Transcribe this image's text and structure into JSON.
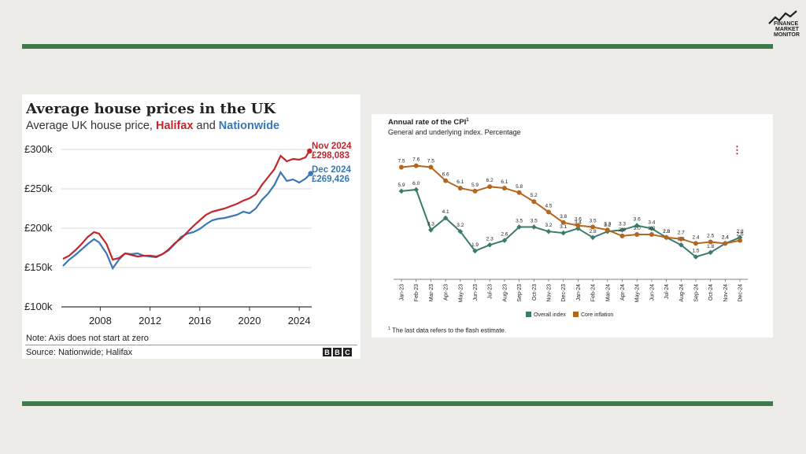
{
  "logo": {
    "line1": "FINANCE",
    "line2": "MARKET",
    "line3": "MONITOR"
  },
  "colors": {
    "rule": "#3f7a4d",
    "halifax": "#c0272d",
    "nationwide": "#3a78b5",
    "overall": "#3a7b6e",
    "core": "#b5661e"
  },
  "house_chart": {
    "title": "Average house prices in the UK",
    "subtitle_pre": "Average UK house price, ",
    "subtitle_halifax": "Halifax",
    "subtitle_mid": " and ",
    "subtitle_nationwide": "Nationwide",
    "note": "Note: Axis does not start at zero",
    "source": "Source: Nationwide; Halifax",
    "bbc": [
      "B",
      "B",
      "C"
    ],
    "label_halifax_date": "Nov 2024",
    "label_halifax_value": "£298,083",
    "label_nationwide_date": "Dec 2024",
    "label_nationwide_value": "£269,426"
  },
  "cpi_chart": {
    "title": "Annual rate of the CPI",
    "title_sup": "1",
    "subtitle": "General and underlying index. Percentage",
    "footnote_mark": "1",
    "footnote": "The last data refers to the flash estimate.",
    "menu_glyph": "⋮"
  },
  "chart_data": [
    {
      "type": "line",
      "title": "Average house prices in the UK",
      "subtitle": "Average UK house price, Halifax and Nationwide",
      "ylim": [
        100000,
        300000
      ],
      "yticks": [
        100000,
        150000,
        200000,
        250000,
        300000
      ],
      "ytick_labels": [
        "£100k",
        "£150k",
        "£200k",
        "£250k",
        "£300k"
      ],
      "xlim": [
        2005,
        2025
      ],
      "xticks": [
        2008,
        2012,
        2016,
        2020,
        2024
      ],
      "xtick_labels": [
        "2008",
        "2012",
        "2016",
        "2020",
        "2024"
      ],
      "grid": true,
      "series": [
        {
          "name": "Halifax",
          "color": "#c0272d",
          "x": [
            2005.0,
            2005.5,
            2006.0,
            2006.5,
            2007.0,
            2007.5,
            2007.9,
            2008.5,
            2009.0,
            2009.5,
            2010.0,
            2010.5,
            2011.0,
            2011.5,
            2012.0,
            2012.5,
            2013.0,
            2013.5,
            2014.0,
            2014.5,
            2015.0,
            2015.5,
            2016.0,
            2016.5,
            2017.0,
            2017.5,
            2018.0,
            2018.5,
            2019.0,
            2019.5,
            2020.0,
            2020.5,
            2021.0,
            2021.5,
            2022.0,
            2022.5,
            2023.0,
            2023.5,
            2024.0,
            2024.5,
            2024.83
          ],
          "y": [
            161000,
            165000,
            172000,
            180000,
            189000,
            195000,
            193000,
            180000,
            160000,
            162000,
            168000,
            166000,
            164000,
            165000,
            165000,
            164000,
            167000,
            173000,
            181000,
            187000,
            195000,
            203000,
            210000,
            217000,
            221000,
            223000,
            225000,
            228000,
            231000,
            235000,
            238000,
            243000,
            255000,
            265000,
            275000,
            292000,
            285000,
            288000,
            287000,
            290000,
            298083
          ]
        },
        {
          "name": "Nationwide",
          "color": "#3a78b5",
          "x": [
            2005.0,
            2005.5,
            2006.0,
            2006.5,
            2007.0,
            2007.5,
            2007.9,
            2008.5,
            2009.0,
            2009.5,
            2010.0,
            2010.5,
            2011.0,
            2011.5,
            2012.0,
            2012.5,
            2013.0,
            2013.5,
            2014.0,
            2014.5,
            2015.0,
            2015.5,
            2016.0,
            2016.5,
            2017.0,
            2017.5,
            2018.0,
            2018.5,
            2019.0,
            2019.5,
            2020.0,
            2020.5,
            2021.0,
            2021.5,
            2022.0,
            2022.5,
            2023.0,
            2023.5,
            2024.0,
            2024.5,
            2024.92
          ],
          "y": [
            152000,
            160000,
            166000,
            173000,
            180000,
            186000,
            182000,
            168000,
            149000,
            160000,
            168000,
            167000,
            168000,
            165000,
            164000,
            163000,
            167000,
            172000,
            180000,
            189000,
            193000,
            195000,
            199000,
            205000,
            210000,
            212000,
            213000,
            215000,
            217000,
            221000,
            219000,
            225000,
            236000,
            244000,
            255000,
            271000,
            260000,
            262000,
            258000,
            263000,
            269426
          ]
        }
      ]
    },
    {
      "type": "line",
      "title": "Annual rate of the CPI",
      "subtitle": "General and underlying index. Percentage",
      "categories": [
        "Jan-23",
        "Feb-23",
        "Mar-23",
        "Apr-23",
        "May-23",
        "Jun-23",
        "Jul-23",
        "Aug-23",
        "Sep-23",
        "Oct-23",
        "Nov-23",
        "Dec-23",
        "Jan-24",
        "Feb-24",
        "Mar-24",
        "Apr-24",
        "May-24",
        "Jun-24",
        "Jul-24",
        "Aug-24",
        "Sep-24",
        "Oct-24",
        "Nov-24",
        "Dec-24"
      ],
      "ylim": [
        0,
        8
      ],
      "grid": false,
      "legend": "bottom",
      "series": [
        {
          "name": "Overall index",
          "color": "#3a7b6e",
          "values": [
            5.9,
            6.0,
            3.3,
            4.1,
            3.2,
            1.9,
            2.3,
            2.6,
            3.5,
            3.5,
            3.2,
            3.1,
            3.4,
            2.8,
            3.2,
            3.3,
            3.6,
            3.4,
            2.8,
            2.3,
            1.5,
            1.8,
            2.4,
            2.8
          ],
          "labels": [
            "5.9",
            "6.0",
            "3.3",
            "4.1",
            "3.2",
            "1.9",
            "2.3",
            "2.6",
            "3.5",
            "3.5",
            "3.2",
            "3.1",
            "3.4",
            "2.8",
            "3.2",
            "3.3",
            "3.6",
            "3.4",
            "2.8",
            "2.3",
            "1.5",
            "1.8",
            "2.4",
            "2.8"
          ]
        },
        {
          "name": "Core inflation",
          "color": "#b5661e",
          "values": [
            7.5,
            7.6,
            7.5,
            6.6,
            6.1,
            5.9,
            6.2,
            6.1,
            5.8,
            5.2,
            4.5,
            3.8,
            3.6,
            3.5,
            3.3,
            2.9,
            3.0,
            3.0,
            2.8,
            2.7,
            2.4,
            2.5,
            2.4,
            2.6
          ],
          "labels": [
            "7.5",
            "7.6",
            "7.5",
            "6.6",
            "6.1",
            "5.9",
            "6.2",
            "6.1",
            "5.8",
            "5.2",
            "4.5",
            "3.8",
            "3.6",
            "3.5",
            "3.3",
            "2.9",
            "3.0",
            "3.0",
            "2.8",
            "2.7",
            "2.4",
            "2.5",
            "2.4",
            "2.6"
          ]
        }
      ]
    }
  ]
}
